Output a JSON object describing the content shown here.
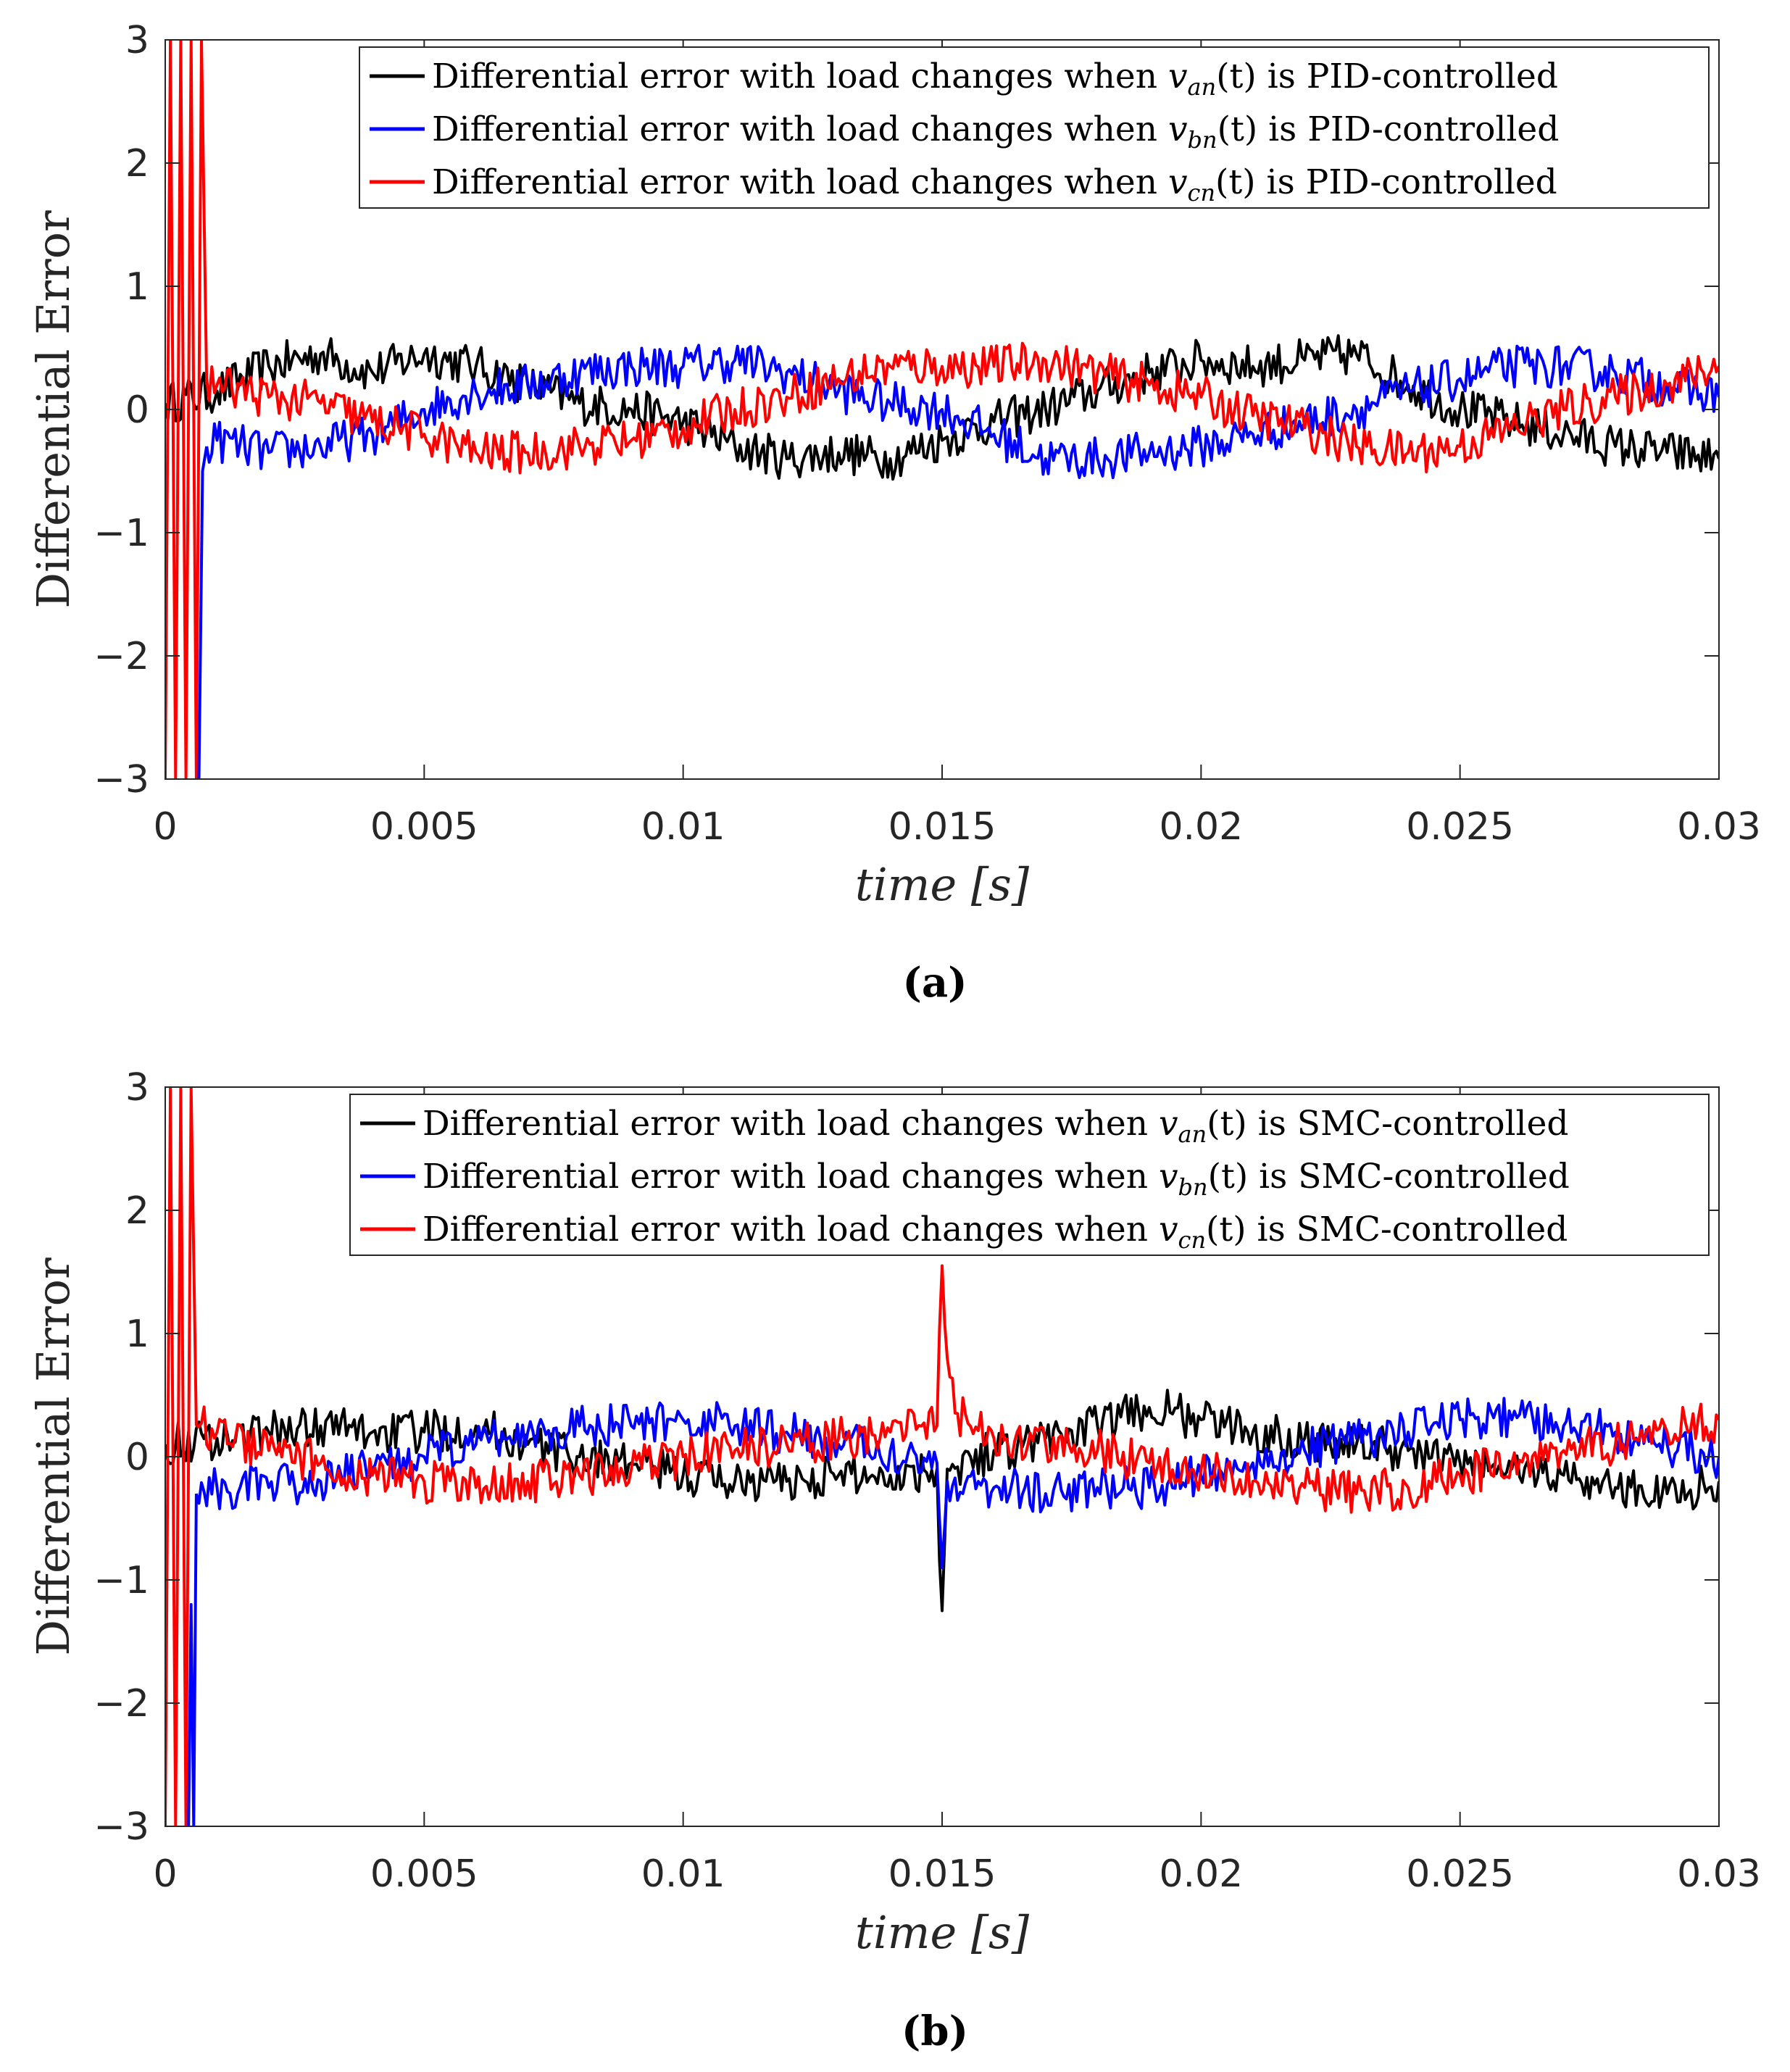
{
  "colors": {
    "black": "#000000",
    "blue": "#0000ff",
    "red": "#ff0000",
    "axis": "#262626"
  },
  "chart_data": [
    {
      "type": "line",
      "panel_label": "(a)",
      "xlabel": "time  [s]",
      "ylabel": "Differential Error",
      "xlim": [
        0,
        0.03
      ],
      "ylim": [
        -3,
        3
      ],
      "xticks": [
        "0",
        "0.005",
        "0.01",
        "0.015",
        "0.02",
        "0.025",
        "0.03"
      ],
      "yticks": [
        "−3",
        "−2",
        "−1",
        "0",
        "1",
        "2",
        "3"
      ],
      "legend_position": "top-right",
      "series": [
        {
          "name": "Differential error with load changes when van(t) is PID-controlled",
          "legend_prefix": "Differential error with load changes when ",
          "legend_var": "v",
          "legend_sub": "an",
          "legend_suffix": "(t) is PID-controlled",
          "color": "#000000",
          "x": [
            0,
            0.001,
            0.002,
            0.003,
            0.004,
            0.005,
            0.006,
            0.007,
            0.008,
            0.009,
            0.01,
            0.011,
            0.012,
            0.013,
            0.014,
            0.015,
            0.016,
            0.017,
            0.018,
            0.019,
            0.02,
            0.021,
            0.022,
            0.023,
            0.024,
            0.025,
            0.026,
            0.027,
            0.028,
            0.029,
            0.03
          ],
          "y": [
            0.05,
            0.15,
            0.35,
            0.45,
            0.3,
            0.45,
            0.35,
            0.2,
            0.05,
            0.0,
            -0.1,
            -0.3,
            -0.4,
            -0.35,
            -0.4,
            -0.25,
            -0.1,
            0.0,
            0.15,
            0.3,
            0.4,
            0.35,
            0.4,
            0.45,
            0.2,
            0.0,
            -0.1,
            -0.2,
            -0.3,
            -0.35,
            -0.4
          ]
        },
        {
          "name": "Differential error with load changes when vbn(t) is PID-controlled",
          "legend_prefix": "Differential error with load changes when ",
          "legend_var": "v",
          "legend_sub": "bn",
          "legend_suffix": "(t) is PID-controlled",
          "color": "#0000ff",
          "x": [
            0.0008,
            0.001,
            0.002,
            0.003,
            0.004,
            0.005,
            0.006,
            0.007,
            0.008,
            0.009,
            0.01,
            0.011,
            0.012,
            0.013,
            0.014,
            0.015,
            0.016,
            0.017,
            0.018,
            0.019,
            0.02,
            0.021,
            0.022,
            0.023,
            0.024,
            0.025,
            0.026,
            0.027,
            0.028,
            0.029,
            0.03
          ],
          "y": [
            -0.3,
            -0.25,
            -0.35,
            -0.3,
            -0.2,
            0.0,
            0.15,
            0.2,
            0.3,
            0.35,
            0.35,
            0.4,
            0.3,
            0.15,
            0.05,
            0.0,
            -0.2,
            -0.4,
            -0.4,
            -0.35,
            -0.3,
            -0.2,
            -0.1,
            0.0,
            0.15,
            0.25,
            0.35,
            0.35,
            0.3,
            0.2,
            0.1
          ]
        },
        {
          "name": "Differential error with load changes when vcn(t) is PID-controlled",
          "legend_prefix": "Differential error with load changes when ",
          "legend_var": "v",
          "legend_sub": "cn",
          "legend_suffix": "(t) is PID-controlled",
          "color": "#ff0000",
          "x": [
            0.0008,
            0.001,
            0.002,
            0.003,
            0.004,
            0.005,
            0.006,
            0.007,
            0.008,
            0.009,
            0.01,
            0.011,
            0.012,
            0.013,
            0.014,
            0.015,
            0.016,
            0.017,
            0.018,
            0.019,
            0.02,
            0.021,
            0.022,
            0.023,
            0.024,
            0.025,
            0.026,
            0.027,
            0.028,
            0.029,
            0.03
          ],
          "y": [
            0.25,
            0.2,
            0.1,
            0.05,
            -0.1,
            -0.2,
            -0.35,
            -0.35,
            -0.3,
            -0.25,
            -0.15,
            0.0,
            0.1,
            0.25,
            0.35,
            0.35,
            0.35,
            0.4,
            0.3,
            0.2,
            0.1,
            -0.05,
            -0.15,
            -0.3,
            -0.35,
            -0.3,
            -0.15,
            0.0,
            0.1,
            0.2,
            0.35
          ]
        },
        {
          "name": "startup transient (red)",
          "color": "#ff0000",
          "legend_hidden": true,
          "x": [
            0,
            0.0001,
            0.0002,
            0.0003,
            0.0004,
            0.0005,
            0.0006,
            0.0007,
            0.0008
          ],
          "y": [
            -3,
            3,
            -3,
            3,
            -3,
            3,
            -3,
            3,
            0.2
          ]
        },
        {
          "name": "startup transient (blue)",
          "color": "#0000ff",
          "legend_hidden": true,
          "x": [
            0.00065,
            0.00072,
            0.0008
          ],
          "y": [
            -3,
            -0.5,
            -0.3
          ]
        }
      ]
    },
    {
      "type": "line",
      "panel_label": "(b)",
      "xlabel": "time  [s]",
      "ylabel": "Differential Error",
      "xlim": [
        0,
        0.03
      ],
      "ylim": [
        -3,
        3
      ],
      "xticks": [
        "0",
        "0.005",
        "0.01",
        "0.015",
        "0.02",
        "0.025",
        "0.03"
      ],
      "yticks": [
        "−3",
        "−2",
        "−1",
        "0",
        "1",
        "2",
        "3"
      ],
      "legend_position": "top-right",
      "series": [
        {
          "name": "Differential error with load changes when van(t) is SMC-controlled",
          "legend_prefix": "Differential error with load changes when ",
          "legend_var": "v",
          "legend_sub": "an",
          "legend_suffix": "(t) is SMC-controlled",
          "color": "#000000",
          "x": [
            0,
            0.001,
            0.002,
            0.003,
            0.004,
            0.005,
            0.006,
            0.007,
            0.008,
            0.009,
            0.01,
            0.011,
            0.012,
            0.013,
            0.014,
            0.0149,
            0.015,
            0.0151,
            0.016,
            0.017,
            0.018,
            0.019,
            0.02,
            0.021,
            0.022,
            0.023,
            0.024,
            0.025,
            0.026,
            0.027,
            0.028,
            0.029,
            0.03
          ],
          "y": [
            0.1,
            0.15,
            0.2,
            0.25,
            0.2,
            0.2,
            0.25,
            0.1,
            0.0,
            -0.05,
            -0.15,
            -0.2,
            -0.2,
            -0.15,
            -0.15,
            -0.1,
            -1.25,
            -0.1,
            0.05,
            0.15,
            0.25,
            0.4,
            0.3,
            0.2,
            0.15,
            0.1,
            0.05,
            -0.05,
            -0.1,
            -0.15,
            -0.25,
            -0.3,
            -0.2
          ]
        },
        {
          "name": "Differential error with load changes when vbn(t) is SMC-controlled",
          "legend_prefix": "Differential error with load changes when ",
          "legend_var": "v",
          "legend_sub": "bn",
          "legend_suffix": "(t) is SMC-controlled",
          "color": "#0000ff",
          "x": [
            0.0006,
            0.001,
            0.002,
            0.003,
            0.004,
            0.005,
            0.006,
            0.007,
            0.008,
            0.009,
            0.01,
            0.011,
            0.012,
            0.013,
            0.014,
            0.0149,
            0.015,
            0.0151,
            0.016,
            0.017,
            0.018,
            0.019,
            0.02,
            0.021,
            0.022,
            0.023,
            0.024,
            0.025,
            0.026,
            0.027,
            0.028,
            0.029,
            0.03
          ],
          "y": [
            -0.3,
            -0.25,
            -0.25,
            -0.2,
            -0.1,
            0.0,
            0.1,
            0.2,
            0.25,
            0.25,
            0.3,
            0.25,
            0.2,
            0.1,
            0.05,
            -0.05,
            -0.9,
            -0.2,
            -0.25,
            -0.3,
            -0.25,
            -0.25,
            -0.15,
            -0.05,
            0.05,
            0.15,
            0.2,
            0.3,
            0.3,
            0.25,
            0.2,
            0.1,
            0.0
          ]
        },
        {
          "name": "Differential error with load changes when vcn(t) is SMC-controlled",
          "legend_prefix": "Differential error with load changes when ",
          "legend_var": "v",
          "legend_sub": "cn",
          "legend_suffix": "(t) is SMC-controlled",
          "color": "#ff0000",
          "x": [
            0.0006,
            0.001,
            0.002,
            0.003,
            0.004,
            0.005,
            0.006,
            0.007,
            0.008,
            0.009,
            0.01,
            0.011,
            0.012,
            0.013,
            0.014,
            0.0149,
            0.015,
            0.0151,
            0.0153,
            0.016,
            0.017,
            0.018,
            0.019,
            0.02,
            0.021,
            0.022,
            0.023,
            0.024,
            0.025,
            0.026,
            0.027,
            0.028,
            0.029,
            0.03
          ],
          "y": [
            0.25,
            0.2,
            0.05,
            -0.05,
            -0.15,
            -0.2,
            -0.25,
            -0.2,
            -0.15,
            -0.1,
            0.0,
            0.05,
            0.1,
            0.15,
            0.2,
            0.25,
            1.55,
            0.8,
            0.35,
            0.15,
            0.1,
            0.05,
            -0.05,
            -0.1,
            -0.2,
            -0.25,
            -0.3,
            -0.25,
            -0.15,
            -0.05,
            0.05,
            0.1,
            0.2,
            0.3
          ]
        },
        {
          "name": "startup transient (red)",
          "color": "#ff0000",
          "legend_hidden": true,
          "x": [
            0,
            0.0001,
            0.0002,
            0.0003,
            0.0004,
            0.0005,
            0.0006
          ],
          "y": [
            -3,
            3,
            -3,
            3,
            -3,
            3,
            0.25
          ]
        },
        {
          "name": "startup transient (blue)",
          "color": "#0000ff",
          "legend_hidden": true,
          "x": [
            0.00045,
            0.0005,
            0.00055,
            0.0006
          ],
          "y": [
            -3,
            -1.2,
            -3,
            -0.3
          ]
        }
      ]
    }
  ]
}
